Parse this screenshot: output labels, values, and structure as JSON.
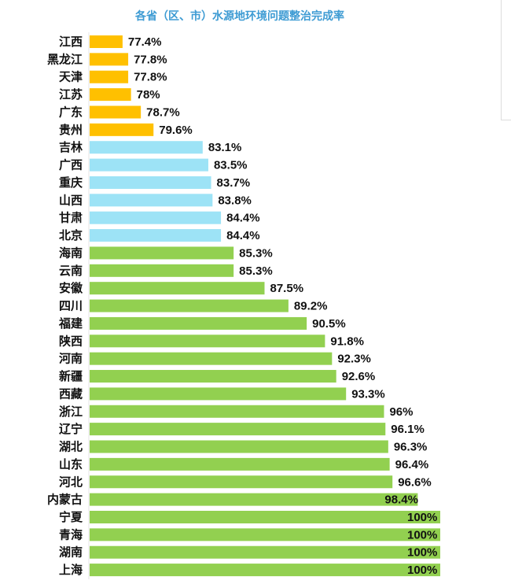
{
  "chart_data": {
    "type": "bar",
    "orientation": "horizontal",
    "title": "各省（区、市）水源地环境问题整治完成率",
    "categories": [
      "江西",
      "黑龙江",
      "天津",
      "江苏",
      "广东",
      "贵州",
      "吉林",
      "广西",
      "重庆",
      "山西",
      "甘肃",
      "北京",
      "海南",
      "云南",
      "安徽",
      "四川",
      "福建",
      "陕西",
      "河南",
      "新疆",
      "西藏",
      "浙江",
      "辽宁",
      "湖北",
      "山东",
      "河北",
      "内蒙古",
      "宁夏",
      "青海",
      "湖南",
      "上海"
    ],
    "values": [
      77.4,
      77.8,
      77.8,
      78,
      78.7,
      79.6,
      83.1,
      83.5,
      83.7,
      83.8,
      84.4,
      84.4,
      85.3,
      85.3,
      87.5,
      89.2,
      90.5,
      91.8,
      92.3,
      92.6,
      93.3,
      96,
      96.1,
      96.3,
      96.4,
      96.6,
      98.4,
      100,
      100,
      100,
      100
    ],
    "data_labels": [
      "77.4%",
      "77.8%",
      "77.8%",
      "78%",
      "78.7%",
      "79.6%",
      "83.1%",
      "83.5%",
      "83.7%",
      "83.8%",
      "84.4%",
      "84.4%",
      "85.3%",
      "85.3%",
      "87.5%",
      "89.2%",
      "90.5%",
      "91.8%",
      "92.3%",
      "92.6%",
      "93.3%",
      "96%",
      "96.1%",
      "96.3%",
      "96.4%",
      "96.6%",
      "98.4%",
      "100%",
      "100%",
      "100%",
      "100%"
    ],
    "xlim": [
      75,
      100
    ],
    "grid": false,
    "colors": {
      "below_80": "#FFC000",
      "80_to_85": "#9DE3F6",
      "above_85": "#92D050"
    }
  }
}
